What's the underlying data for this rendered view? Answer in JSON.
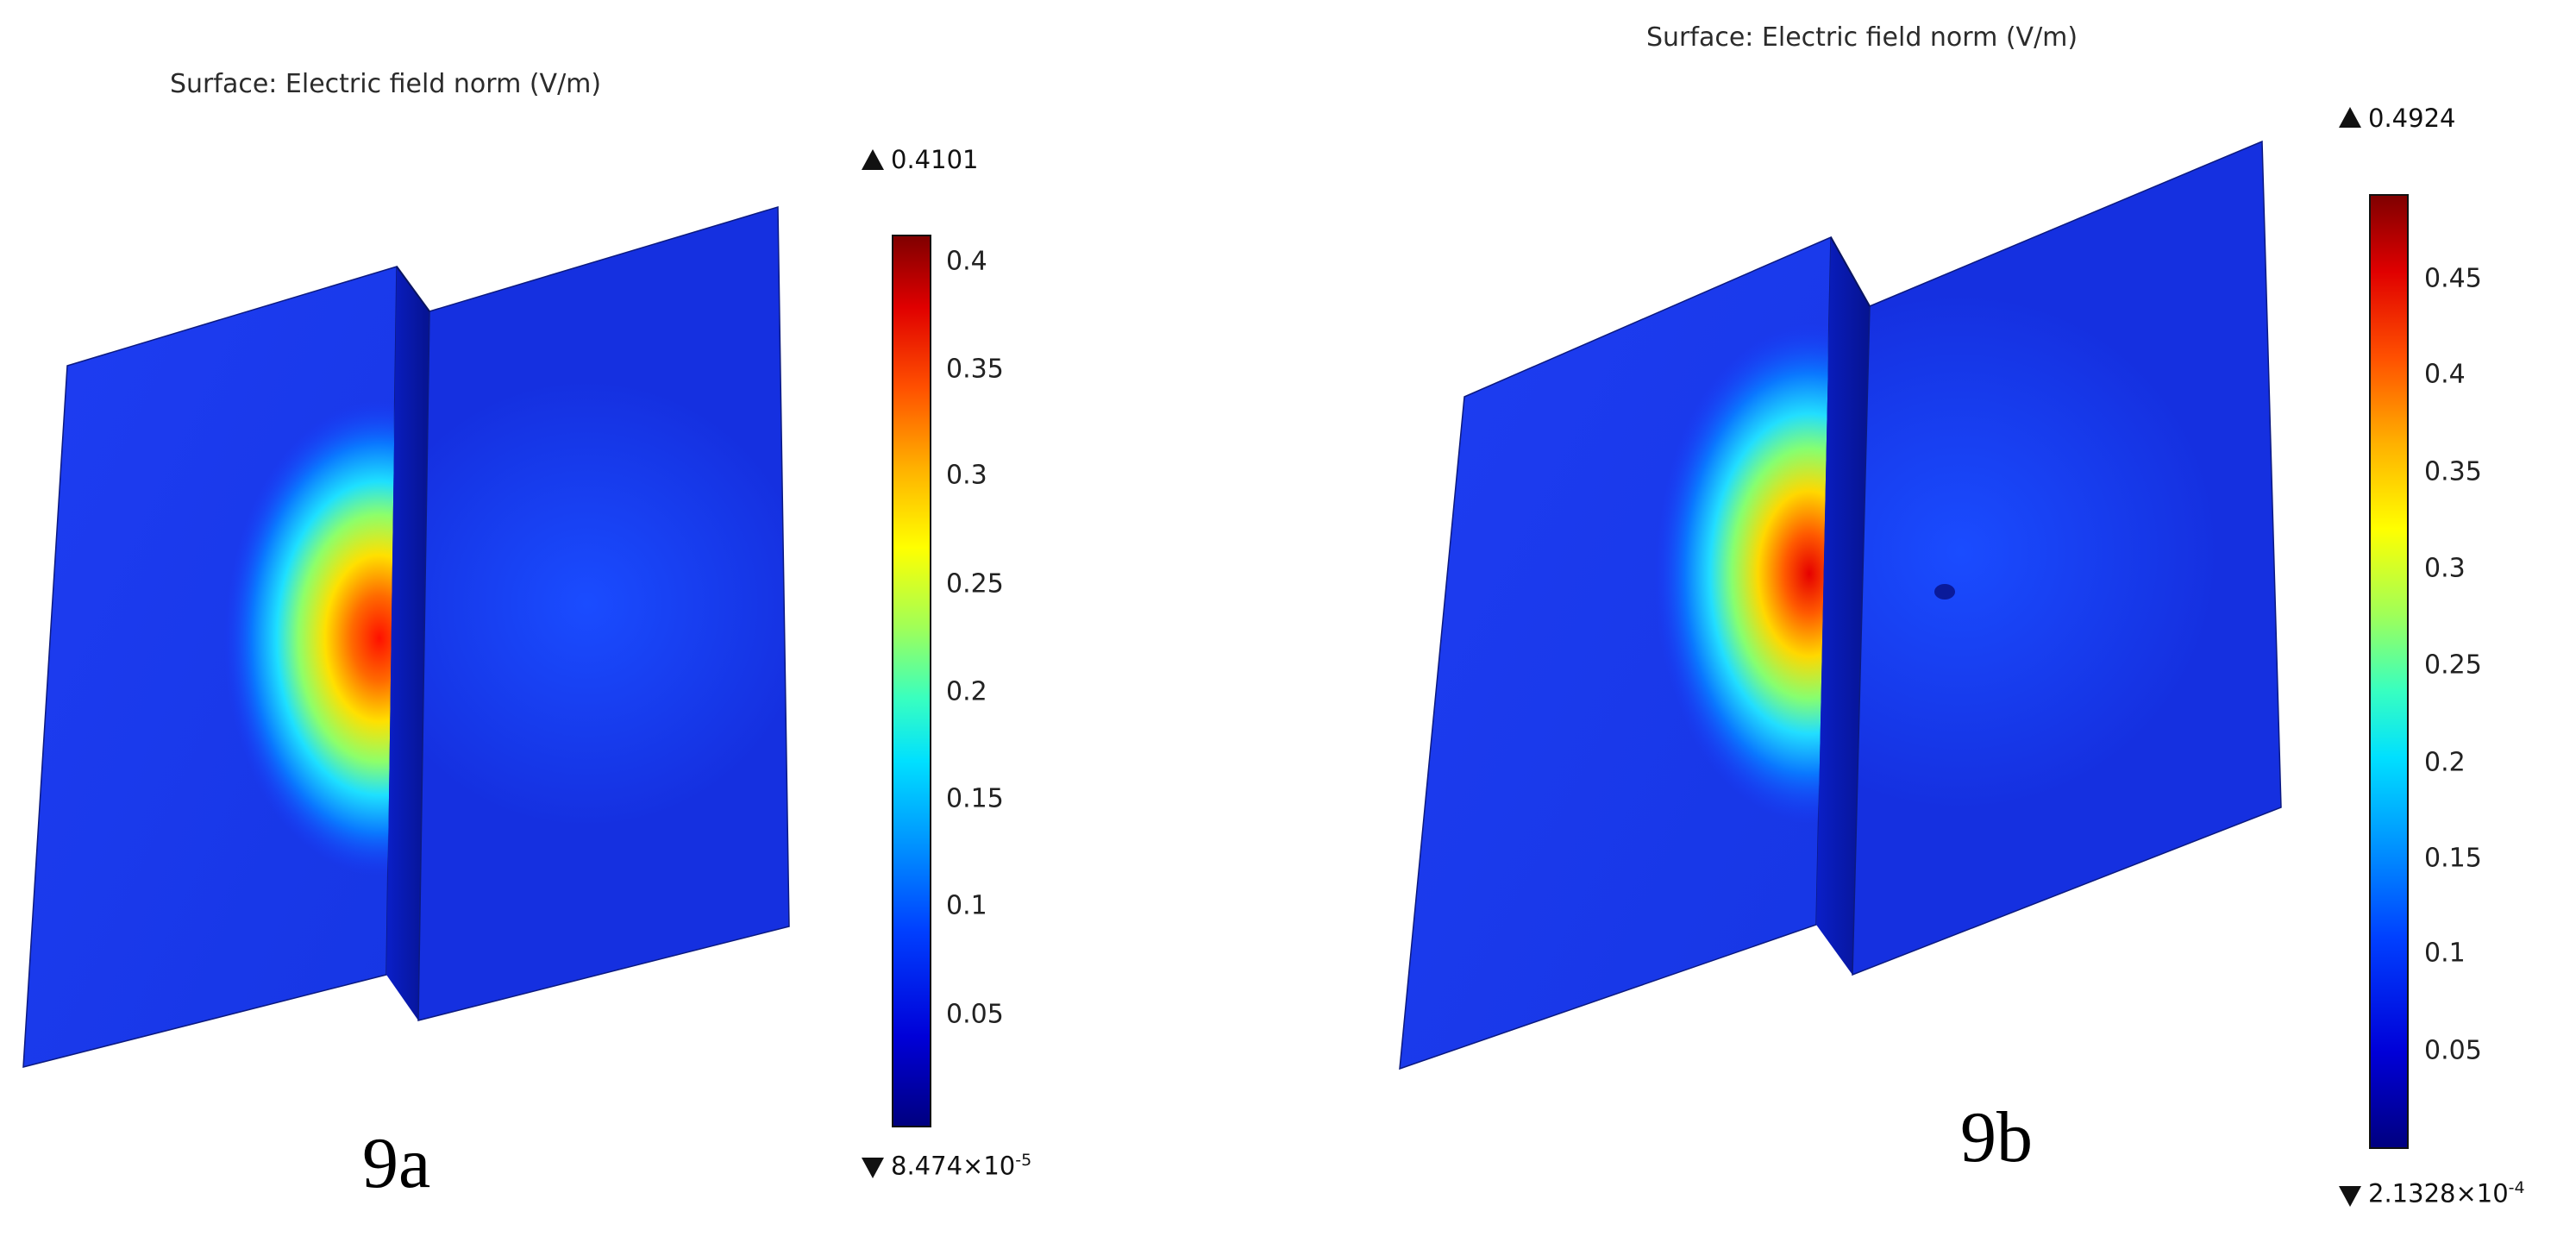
{
  "panels": [
    {
      "title": "Surface: Electric field norm (V/m)",
      "max_value": "0.4101",
      "min_value_base": "8.474×10",
      "min_value_exp": "-5",
      "ticks": [
        "0.4",
        "0.35",
        "0.3",
        "0.25",
        "0.2",
        "0.15",
        "0.1",
        "0.05"
      ],
      "figure_label": "9a"
    },
    {
      "title": "Surface: Electric field norm (V/m)",
      "max_value": "0.4924",
      "min_value_base": "2.1328×10",
      "min_value_exp": "-4",
      "ticks": [
        "0.45",
        "0.4",
        "0.35",
        "0.3",
        "0.25",
        "0.2",
        "0.15",
        "0.1",
        "0.05"
      ],
      "figure_label": "9b"
    }
  ],
  "colormap": "rainbow",
  "colormap_colors": [
    "#000080",
    "#0000ff",
    "#00aaff",
    "#00ffff",
    "#ffff00",
    "#ff8000",
    "#ff0000",
    "#800000"
  ]
}
